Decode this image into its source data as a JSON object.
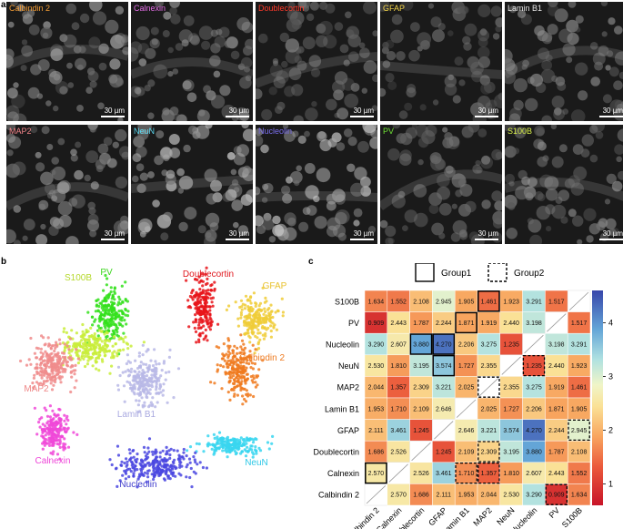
{
  "panel_letters": {
    "a": "a",
    "b": "b",
    "c": "c"
  },
  "panel_a": {
    "scale_label": "30 µm",
    "tiles": [
      {
        "label": "Calbindin 2",
        "color": "#f39c34"
      },
      {
        "label": "Calnexin",
        "color": "#e36ee6"
      },
      {
        "label": "Doublecortin",
        "color": "#ff3a2a"
      },
      {
        "label": "GFAP",
        "color": "#f7d84a"
      },
      {
        "label": "Lamin B1",
        "color": "#e6e6e6"
      },
      {
        "label": "MAP2",
        "color": "#f2858a"
      },
      {
        "label": "NeuN",
        "color": "#5ad8f0"
      },
      {
        "label": "Nucleolin",
        "color": "#7b6ff0"
      },
      {
        "label": "PV",
        "color": "#6fe234"
      },
      {
        "label": "S100B",
        "color": "#d9f04a"
      }
    ]
  },
  "panel_b": {
    "clusters": [
      {
        "label": "PV",
        "color": "#34e01c",
        "label_color": "#3dd61f"
      },
      {
        "label": "Doublecortin",
        "color": "#e8141a",
        "label_color": "#e0161c"
      },
      {
        "label": "GFAP",
        "color": "#f0cc38",
        "label_color": "#e8c12c"
      },
      {
        "label": "S100B",
        "color": "#c9ed3a",
        "label_color": "#b6d92e"
      },
      {
        "label": "Calbindin 2",
        "color": "#f07a1e",
        "label_color": "#ee7a20"
      },
      {
        "label": "MAP2",
        "color": "#f08c8c",
        "label_color": "#ee8585"
      },
      {
        "label": "Lamin B1",
        "color": "#b8b8e6",
        "label_color": "#a9a9e0"
      },
      {
        "label": "Calnexin",
        "color": "#f048d8",
        "label_color": "#ee44d8"
      },
      {
        "label": "NeuN",
        "color": "#38d6f0",
        "label_color": "#2ec8e6"
      },
      {
        "label": "Nucleolin",
        "color": "#4a46e0",
        "label_color": "#3f3ccc"
      }
    ]
  },
  "chart_data": {
    "type": "heatmap",
    "rows": [
      "S100B",
      "PV",
      "Nucleolin",
      "NeuN",
      "MAP2",
      "Lamin B1",
      "GFAP",
      "Doublecortin",
      "Calnexin",
      "Calbindin 2"
    ],
    "columns": [
      "Calbindin 2",
      "Calnexin",
      "Doublecortin",
      "GFAP",
      "Lamin B1",
      "MAP2",
      "NeuN",
      "Nucleolin",
      "PV",
      "S100B"
    ],
    "values": [
      [
        1.634,
        1.552,
        2.108,
        2.945,
        1.905,
        1.461,
        1.923,
        3.291,
        1.517,
        null
      ],
      [
        0.909,
        2.443,
        1.787,
        2.244,
        1.871,
        1.919,
        2.44,
        3.198,
        null,
        1.517
      ],
      [
        3.29,
        2.607,
        3.88,
        4.27,
        2.206,
        3.275,
        1.235,
        null,
        3.198,
        3.291
      ],
      [
        2.53,
        1.81,
        3.195,
        3.574,
        1.727,
        2.355,
        null,
        1.235,
        2.44,
        1.923
      ],
      [
        2.044,
        1.357,
        2.309,
        3.221,
        2.025,
        null,
        2.355,
        3.275,
        1.919,
        1.461
      ],
      [
        1.953,
        1.71,
        2.109,
        2.646,
        null,
        2.025,
        1.727,
        2.206,
        1.871,
        1.905
      ],
      [
        2.111,
        3.461,
        1.245,
        null,
        2.646,
        3.221,
        3.574,
        4.27,
        2.244,
        2.945
      ],
      [
        1.686,
        2.526,
        null,
        1.245,
        2.109,
        2.309,
        3.195,
        3.88,
        1.787,
        2.108
      ],
      [
        2.57,
        null,
        2.526,
        3.461,
        1.71,
        1.357,
        1.81,
        2.607,
        2.443,
        1.552
      ],
      [
        null,
        2.57,
        1.686,
        2.111,
        1.953,
        2.044,
        2.53,
        3.29,
        0.909,
        1.634
      ]
    ],
    "group1_cells": [
      [
        0,
        5
      ],
      [
        1,
        4
      ],
      [
        2,
        2
      ],
      [
        2,
        3
      ],
      [
        3,
        3
      ],
      [
        8,
        0
      ]
    ],
    "group2_cells": [
      [
        3,
        7
      ],
      [
        4,
        5
      ],
      [
        6,
        9
      ],
      [
        7,
        5
      ],
      [
        8,
        4
      ],
      [
        8,
        5
      ],
      [
        9,
        8
      ]
    ],
    "legend": {
      "group1": "Group1",
      "group2": "Group2"
    },
    "colorbar": {
      "min": 0.6,
      "max": 4.6,
      "ticks": [
        1,
        2,
        3,
        4
      ],
      "labels": [
        "1",
        "2",
        "3",
        "4"
      ]
    }
  }
}
